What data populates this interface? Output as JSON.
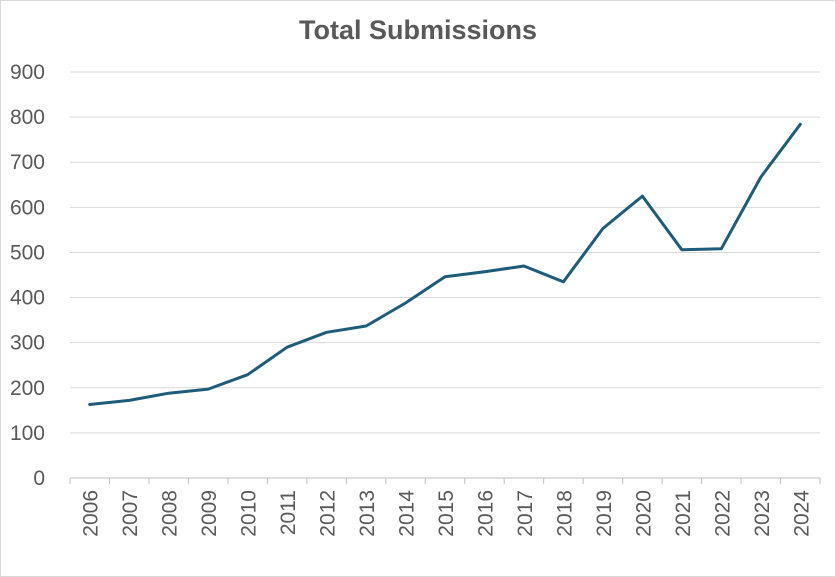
{
  "chart_data": {
    "type": "line",
    "title": "Total Submissions",
    "xlabel": "",
    "ylabel": "",
    "categories": [
      "2006",
      "2007",
      "2008",
      "2009",
      "2010",
      "2011",
      "2012",
      "2013",
      "2014",
      "2015",
      "2016",
      "2017",
      "2018",
      "2019",
      "2020",
      "2021",
      "2022",
      "2023",
      "2024"
    ],
    "series": [
      {
        "values": [
          163,
          172,
          188,
          197,
          229,
          290,
          323,
          337,
          388,
          446,
          457,
          470,
          435,
          553,
          625,
          506,
          508,
          667,
          784
        ],
        "color": "#1f5c7a"
      }
    ],
    "ylim": [
      0,
      900
    ],
    "yticks": [
      0,
      100,
      200,
      300,
      400,
      500,
      600,
      700,
      800,
      900
    ],
    "grid": true,
    "legend": "none",
    "x_tick_rotation": "vertical"
  }
}
